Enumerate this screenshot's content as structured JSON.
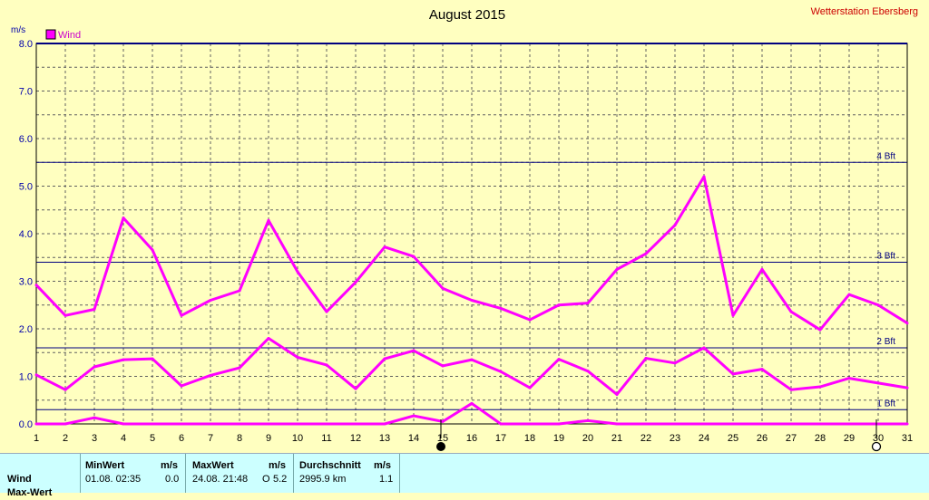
{
  "colors": {
    "background": "#ffffc0",
    "series": "#ff00ff",
    "axis_text": "#0000aa",
    "grid": "#606060",
    "beaufort_line": "#000080",
    "station_text": "#cc0000",
    "stats_panel": "#ccffff"
  },
  "header": {
    "station": "Wetterstation Ebersberg"
  },
  "chart_data": {
    "type": "line",
    "title": "August 2015",
    "ylabel": "m/s",
    "xlabel": "",
    "ylim": [
      0,
      8
    ],
    "yticks": [
      "0.0",
      "1.0",
      "2.0",
      "3.0",
      "4.0",
      "5.0",
      "6.0",
      "7.0",
      "8.0"
    ],
    "x": [
      1,
      2,
      3,
      4,
      5,
      6,
      7,
      8,
      9,
      10,
      11,
      12,
      13,
      14,
      15,
      16,
      17,
      18,
      19,
      20,
      21,
      22,
      23,
      24,
      25,
      26,
      27,
      28,
      29,
      30,
      31
    ],
    "legend": {
      "label": "Wind",
      "position": "top-left"
    },
    "grid": true,
    "series": [
      {
        "values": [
          2.92,
          2.28,
          2.41,
          4.33,
          3.66,
          2.28,
          2.6,
          2.8,
          4.28,
          3.2,
          2.36,
          2.98,
          3.72,
          3.52,
          2.85,
          2.6,
          2.43,
          2.19,
          2.5,
          2.54,
          3.25,
          3.58,
          4.18,
          5.2,
          2.28,
          3.25,
          2.36,
          1.98,
          2.72,
          2.5,
          2.12
        ]
      },
      {
        "values": [
          1.03,
          0.72,
          1.2,
          1.35,
          1.37,
          0.8,
          1.02,
          1.18,
          1.8,
          1.4,
          1.24,
          0.74,
          1.37,
          1.54,
          1.22,
          1.35,
          1.1,
          0.76,
          1.36,
          1.11,
          0.62,
          1.38,
          1.28,
          1.6,
          1.05,
          1.15,
          0.72,
          0.78,
          0.96,
          0.86,
          0.76
        ]
      },
      {
        "values": [
          0,
          0,
          0.13,
          0,
          0,
          0,
          0,
          0,
          0,
          0,
          0,
          0,
          0,
          0.17,
          0.05,
          0.43,
          0,
          0,
          0,
          0.07,
          0,
          0,
          0,
          0,
          0,
          0,
          0,
          0,
          0,
          0,
          0
        ]
      }
    ],
    "beaufort_lines": [
      {
        "value": 0.3,
        "label": "1 Bft"
      },
      {
        "value": 1.6,
        "label": "2 Bft"
      },
      {
        "value": 3.4,
        "label": "3 Bft"
      },
      {
        "value": 5.5,
        "label": "4 Bft"
      }
    ],
    "moon_markers": [
      {
        "x": 15,
        "phase": "new",
        "icon": "new-moon-icon"
      },
      {
        "x": 30,
        "phase": "full",
        "icon": "full-moon-icon"
      }
    ]
  },
  "stats": {
    "headers": {
      "min": "MinWert",
      "min_unit": "m/s",
      "max": "MaxWert",
      "max_unit": "m/s",
      "avg": "Durchschnitt",
      "avg_unit": "m/s"
    },
    "rows": [
      {
        "label": "Wind",
        "min_date": "01.08.  02:35",
        "min_value": "0.0",
        "max_date": "24.08.  21:48",
        "max_dir": "O",
        "max_value": "5.2",
        "distance": "2995.9 km",
        "avg_value": "1.1"
      },
      {
        "label": "Max-Wert"
      }
    ]
  }
}
